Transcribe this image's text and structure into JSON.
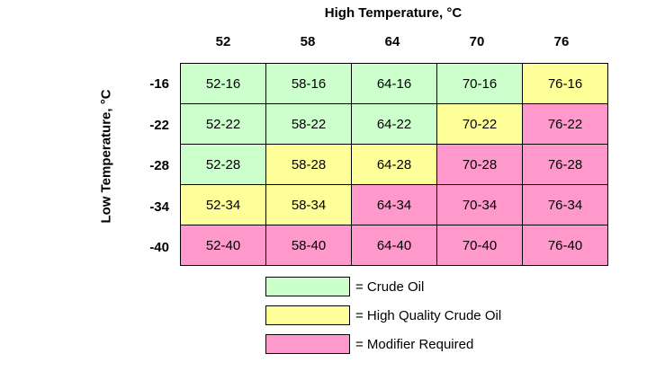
{
  "chart_data": {
    "type": "table",
    "title": "",
    "xlabel": "High Temperature, °C",
    "ylabel": "Low Temperature, °C",
    "columns": [
      "52",
      "58",
      "64",
      "70",
      "76"
    ],
    "rows": [
      "-16",
      "-22",
      "-28",
      "-34",
      "-40"
    ],
    "cells": [
      [
        {
          "label": "52-16",
          "category": "crude"
        },
        {
          "label": "58-16",
          "category": "crude"
        },
        {
          "label": "64-16",
          "category": "crude"
        },
        {
          "label": "70-16",
          "category": "crude"
        },
        {
          "label": "76-16",
          "category": "hq"
        }
      ],
      [
        {
          "label": "52-22",
          "category": "crude"
        },
        {
          "label": "58-22",
          "category": "crude"
        },
        {
          "label": "64-22",
          "category": "crude"
        },
        {
          "label": "70-22",
          "category": "hq"
        },
        {
          "label": "76-22",
          "category": "modifier"
        }
      ],
      [
        {
          "label": "52-28",
          "category": "crude"
        },
        {
          "label": "58-28",
          "category": "hq"
        },
        {
          "label": "64-28",
          "category": "hq"
        },
        {
          "label": "70-28",
          "category": "modifier"
        },
        {
          "label": "76-28",
          "category": "modifier"
        }
      ],
      [
        {
          "label": "52-34",
          "category": "hq"
        },
        {
          "label": "58-34",
          "category": "hq"
        },
        {
          "label": "64-34",
          "category": "modifier"
        },
        {
          "label": "70-34",
          "category": "modifier"
        },
        {
          "label": "76-34",
          "category": "modifier"
        }
      ],
      [
        {
          "label": "52-40",
          "category": "modifier"
        },
        {
          "label": "58-40",
          "category": "modifier"
        },
        {
          "label": "64-40",
          "category": "modifier"
        },
        {
          "label": "70-40",
          "category": "modifier"
        },
        {
          "label": "76-40",
          "category": "modifier"
        }
      ]
    ],
    "legend": [
      {
        "key": "crude",
        "label": "= Crude Oil",
        "color": "#ccffcc"
      },
      {
        "key": "hq",
        "label": "= High Quality Crude Oil",
        "color": "#ffff99"
      },
      {
        "key": "modifier",
        "label": "= Modifier Required",
        "color": "#ff99cc"
      }
    ],
    "legend_placement": "bottom-center"
  }
}
